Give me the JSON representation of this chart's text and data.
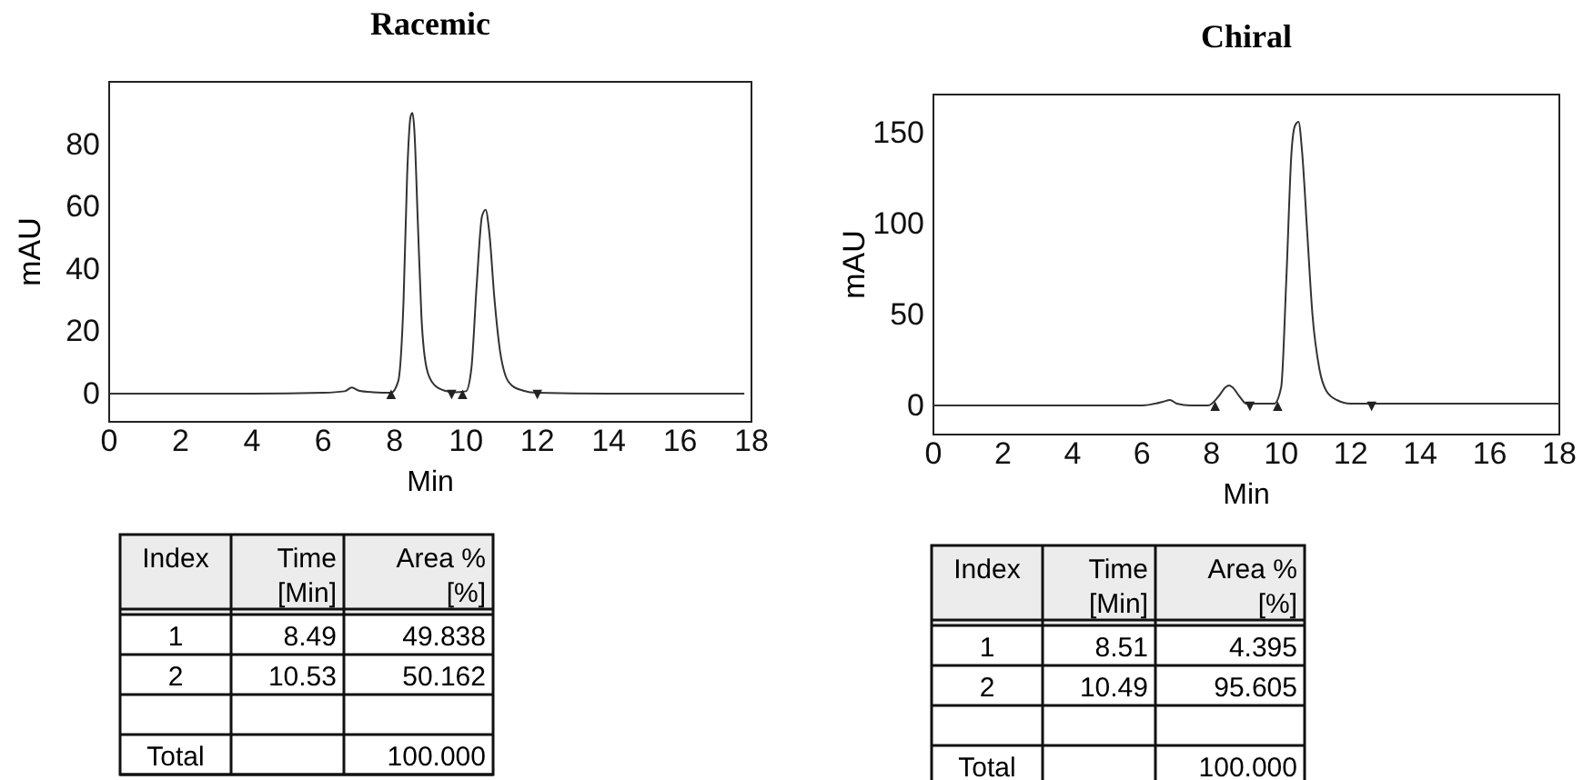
{
  "chart_data": [
    {
      "type": "line",
      "title": "Racemic",
      "xlabel": "Min",
      "ylabel": "mAU",
      "xlim": [
        0,
        18
      ],
      "xticks": [
        0,
        2,
        4,
        6,
        8,
        10,
        12,
        14,
        16,
        18
      ],
      "ylim": [
        -9,
        100
      ],
      "yticks": [
        0,
        20,
        40,
        60,
        80
      ],
      "series": [
        {
          "color": "#333333",
          "x": [
            0,
            2,
            4,
            6,
            6.6,
            6.8,
            7.0,
            7.4,
            7.9,
            8.1,
            8.25,
            8.35,
            8.45,
            8.5,
            8.55,
            8.65,
            8.75,
            8.9,
            9.1,
            9.4,
            9.7,
            10.0,
            10.15,
            10.3,
            10.45,
            10.55,
            10.65,
            10.8,
            10.95,
            11.1,
            11.3,
            11.6,
            12,
            14,
            16,
            17.8
          ],
          "values": [
            0,
            0,
            0,
            0.3,
            0.8,
            2,
            1,
            0.5,
            0.3,
            4,
            30,
            70,
            89,
            90,
            85,
            55,
            25,
            8,
            3,
            1,
            0.5,
            0.8,
            8,
            35,
            57,
            59,
            52,
            30,
            14,
            6,
            2.5,
            1,
            0.3,
            0,
            0,
            0
          ]
        }
      ],
      "annotations": [
        {
          "text": "▲",
          "x": 7.9,
          "y": 0
        },
        {
          "text": "▲",
          "x": 9.9,
          "y": 0
        },
        {
          "text": "▼",
          "x": 9.6,
          "y": 0
        },
        {
          "text": "▼",
          "x": 12.0,
          "y": 0
        }
      ]
    },
    {
      "type": "other",
      "categories": [
        "Index",
        "Time [Min]",
        "Area % [%]"
      ],
      "cell_labels": [
        [
          "1",
          "8.49",
          "49.838"
        ],
        [
          "2",
          "10.53",
          "50.162"
        ],
        [
          null,
          null,
          null
        ],
        [
          "Total",
          null,
          "100.000"
        ]
      ]
    },
    {
      "type": "line",
      "title": "Chiral",
      "xlabel": "Min",
      "ylabel": "mAU",
      "xlim": [
        0,
        18
      ],
      "xticks": [
        0,
        2,
        4,
        6,
        8,
        10,
        12,
        14,
        16,
        18
      ],
      "ylim": [
        -16,
        171
      ],
      "yticks": [
        0,
        50,
        100,
        150
      ],
      "series": [
        {
          "color": "#333333",
          "x": [
            0,
            2,
            4,
            6,
            6.6,
            6.8,
            7.0,
            7.4,
            7.9,
            8.2,
            8.4,
            8.5,
            8.6,
            8.8,
            9.0,
            9.4,
            9.8,
            10.0,
            10.15,
            10.3,
            10.4,
            10.5,
            10.6,
            10.75,
            10.9,
            11.1,
            11.3,
            11.6,
            12,
            13,
            14,
            16,
            18
          ],
          "values": [
            0,
            0,
            0,
            0,
            2,
            3,
            1,
            0,
            0,
            5,
            10,
            11,
            10,
            5,
            1,
            1,
            1,
            10,
            70,
            140,
            154,
            156,
            140,
            95,
            50,
            20,
            8,
            3,
            1,
            1,
            1,
            1,
            1
          ]
        }
      ],
      "annotations": [
        {
          "text": "▲",
          "x": 8.1,
          "y": 0
        },
        {
          "text": "▲",
          "x": 9.9,
          "y": 0
        },
        {
          "text": "▼",
          "x": 9.1,
          "y": 0
        },
        {
          "text": "▼",
          "x": 12.6,
          "y": 0
        }
      ]
    },
    {
      "type": "other",
      "categories": [
        "Index",
        "Time [Min]",
        "Area % [%]"
      ],
      "cell_labels": [
        [
          "1",
          "8.51",
          "4.395"
        ],
        [
          "2",
          "10.49",
          "95.605"
        ],
        [
          null,
          null,
          null
        ],
        [
          "Total",
          null,
          "100.000"
        ]
      ]
    }
  ]
}
